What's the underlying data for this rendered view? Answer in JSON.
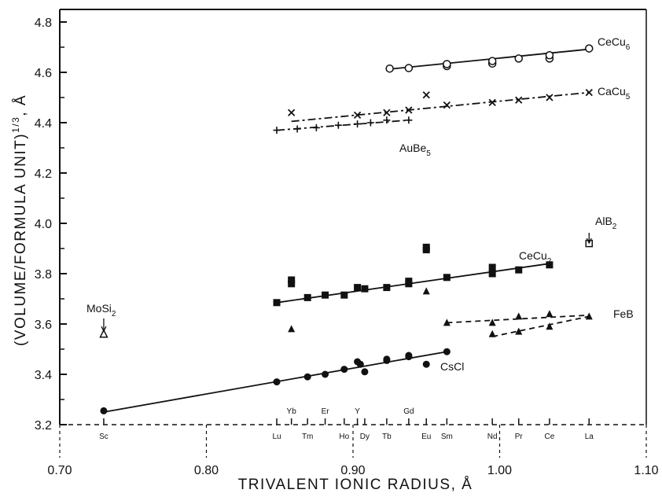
{
  "chart_data": {
    "type": "scatter",
    "xlabel": "TRIVALENT IONIC RADIUS, Å",
    "ylabel": "(VOLUME/FORMULA UNIT)^1/3, Å",
    "xlim": [
      0.7,
      1.1
    ],
    "ylim": [
      3.2,
      4.85
    ],
    "x_ticks": [
      "0.70",
      "0.80",
      "0.90",
      "1.00",
      "1.10"
    ],
    "y_ticks": [
      "3.2",
      "3.4",
      "3.6",
      "3.8",
      "4.0",
      "4.2",
      "4.4",
      "4.6",
      "4.8"
    ],
    "elements": [
      {
        "symbol": "Sc",
        "radius": 0.73,
        "row": "bottom"
      },
      {
        "symbol": "Lu",
        "radius": 0.848,
        "row": "bottom"
      },
      {
        "symbol": "Yb",
        "radius": 0.858,
        "row": "top"
      },
      {
        "symbol": "Tm",
        "radius": 0.869,
        "row": "bottom"
      },
      {
        "symbol": "Er",
        "radius": 0.881,
        "row": "top"
      },
      {
        "symbol": "Ho",
        "radius": 0.894,
        "row": "bottom"
      },
      {
        "symbol": "Y",
        "radius": 0.903,
        "row": "top"
      },
      {
        "symbol": "Dy",
        "radius": 0.908,
        "row": "bottom"
      },
      {
        "symbol": "Tb",
        "radius": 0.923,
        "row": "bottom"
      },
      {
        "symbol": "Gd",
        "radius": 0.938,
        "row": "top"
      },
      {
        "symbol": "Eu",
        "radius": 0.95,
        "row": "bottom"
      },
      {
        "symbol": "Sm",
        "radius": 0.964,
        "row": "bottom"
      },
      {
        "symbol": "Nd",
        "radius": 0.995,
        "row": "bottom"
      },
      {
        "symbol": "Pr",
        "radius": 1.013,
        "row": "bottom"
      },
      {
        "symbol": "Ce",
        "radius": 1.034,
        "row": "bottom"
      },
      {
        "symbol": "La",
        "radius": 1.061,
        "row": "bottom"
      }
    ],
    "series": [
      {
        "name": "CeCu6",
        "marker": "open-circle",
        "points": [
          [
            0.925,
            4.615
          ],
          [
            0.938,
            4.617
          ],
          [
            0.964,
            4.625
          ],
          [
            0.964,
            4.633
          ],
          [
            0.995,
            4.635
          ],
          [
            0.995,
            4.645
          ],
          [
            1.013,
            4.655
          ],
          [
            1.034,
            4.655
          ],
          [
            1.034,
            4.668
          ],
          [
            1.061,
            4.695
          ]
        ],
        "fit": [
          [
            0.925,
            4.613
          ],
          [
            1.061,
            4.692
          ]
        ],
        "fit_style": "solid"
      },
      {
        "name": "CaCu5",
        "marker": "x",
        "points": [
          [
            0.858,
            4.44
          ],
          [
            0.903,
            4.43
          ],
          [
            0.923,
            4.44
          ],
          [
            0.938,
            4.45
          ],
          [
            0.95,
            4.51
          ],
          [
            0.964,
            4.47
          ],
          [
            0.995,
            4.48
          ],
          [
            1.013,
            4.49
          ],
          [
            1.034,
            4.5
          ],
          [
            1.061,
            4.52
          ]
        ],
        "fit": [
          [
            0.858,
            4.405
          ],
          [
            1.061,
            4.52
          ]
        ],
        "fit_style": "dash-dot"
      },
      {
        "name": "AuBe5",
        "marker": "plus",
        "points": [
          [
            0.848,
            4.37
          ],
          [
            0.862,
            4.375
          ],
          [
            0.875,
            4.38
          ],
          [
            0.89,
            4.39
          ],
          [
            0.903,
            4.395
          ],
          [
            0.912,
            4.4
          ],
          [
            0.923,
            4.41
          ],
          [
            0.938,
            4.41
          ]
        ],
        "fit": [
          [
            0.848,
            4.37
          ],
          [
            0.938,
            4.41
          ]
        ],
        "fit_style": "dash-dot"
      },
      {
        "name": "CeCu2",
        "marker": "filled-square",
        "points": [
          [
            0.848,
            3.685
          ],
          [
            0.858,
            3.76
          ],
          [
            0.858,
            3.775
          ],
          [
            0.869,
            3.705
          ],
          [
            0.881,
            3.715
          ],
          [
            0.894,
            3.715
          ],
          [
            0.903,
            3.745
          ],
          [
            0.908,
            3.74
          ],
          [
            0.923,
            3.745
          ],
          [
            0.938,
            3.76
          ],
          [
            0.938,
            3.77
          ],
          [
            0.95,
            3.895
          ],
          [
            0.95,
            3.905
          ],
          [
            0.964,
            3.785
          ],
          [
            0.995,
            3.8
          ],
          [
            0.995,
            3.825
          ],
          [
            1.013,
            3.815
          ],
          [
            1.034,
            3.835
          ]
        ],
        "fit": [
          [
            0.848,
            3.685
          ],
          [
            1.034,
            3.84
          ]
        ],
        "fit_style": "solid"
      },
      {
        "name": "FeB",
        "marker": "filled-triangle",
        "points": [
          [
            0.858,
            3.58
          ],
          [
            0.95,
            3.73
          ],
          [
            0.964,
            3.605
          ],
          [
            0.995,
            3.605
          ],
          [
            0.995,
            3.56
          ],
          [
            1.013,
            3.63
          ],
          [
            1.013,
            3.57
          ],
          [
            1.034,
            3.64
          ],
          [
            1.034,
            3.59
          ],
          [
            1.061,
            3.63
          ]
        ],
        "fit": [
          [
            0.964,
            3.605
          ],
          [
            1.061,
            3.635
          ]
        ],
        "fit2": [
          [
            0.995,
            3.55
          ],
          [
            1.061,
            3.63
          ]
        ],
        "fit_style": "dashed"
      },
      {
        "name": "CsCl",
        "marker": "filled-circle",
        "points": [
          [
            0.73,
            3.255
          ],
          [
            0.848,
            3.37
          ],
          [
            0.869,
            3.39
          ],
          [
            0.881,
            3.4
          ],
          [
            0.894,
            3.42
          ],
          [
            0.903,
            3.45
          ],
          [
            0.905,
            3.44
          ],
          [
            0.908,
            3.41
          ],
          [
            0.923,
            3.455
          ],
          [
            0.923,
            3.46
          ],
          [
            0.938,
            3.47
          ],
          [
            0.938,
            3.475
          ],
          [
            0.95,
            3.44
          ],
          [
            0.964,
            3.49
          ]
        ],
        "fit": [
          [
            0.73,
            3.25
          ],
          [
            0.964,
            3.49
          ]
        ],
        "fit_style": "solid"
      },
      {
        "name": "MoSi2",
        "marker": "open-triangle",
        "points": [
          [
            0.73,
            3.56
          ]
        ]
      },
      {
        "name": "AlB2",
        "marker": "open-square",
        "points": [
          [
            1.061,
            3.92
          ]
        ]
      }
    ],
    "labels": {
      "CeCu6": [
        "CeCu",
        "6"
      ],
      "CaCu5": [
        "CaCu",
        "5"
      ],
      "AuBe5": [
        "AuBe",
        "5"
      ],
      "CeCu2": [
        "CeCu",
        "2"
      ],
      "FeB": [
        "FeB",
        ""
      ],
      "CsCl": [
        "CsCl",
        ""
      ],
      "MoSi2": [
        "MoSi",
        "2"
      ],
      "AlB2": [
        "AlB",
        "2"
      ]
    },
    "grid": false
  }
}
